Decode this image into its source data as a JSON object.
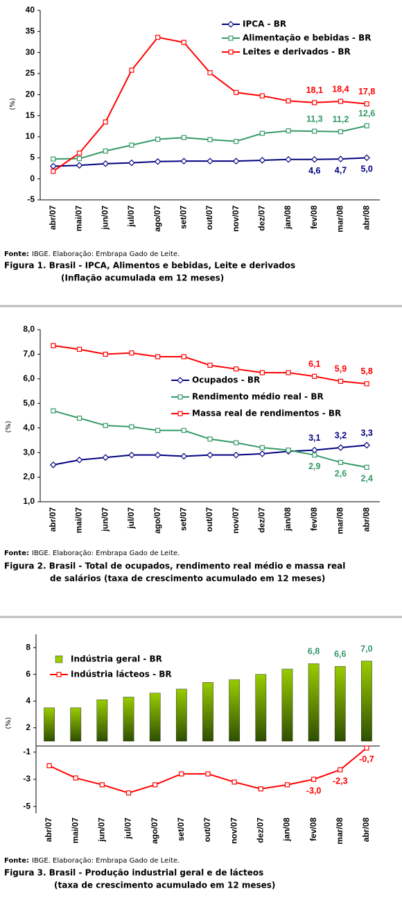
{
  "chart_data": [
    {
      "type": "line",
      "y_label": "(%)",
      "categories": [
        "abr/07",
        "mai/07",
        "jun/07",
        "jul/07",
        "ago/07",
        "set/07",
        "out/07",
        "nov/07",
        "dez/07",
        "jan/08",
        "fev/08",
        "mar/08",
        "abr/08"
      ],
      "ylim": [
        -5,
        40
      ],
      "yticks": [
        40,
        35,
        30,
        25,
        20,
        15,
        10,
        5,
        0,
        -5
      ],
      "series": [
        {
          "name": "IPCA - BR",
          "color": "#000080",
          "values": [
            3.0,
            3.2,
            3.6,
            3.8,
            4.1,
            4.2,
            4.2,
            4.2,
            4.4,
            4.6,
            4.6,
            4.7,
            5.0
          ],
          "value_labels": [
            null,
            null,
            null,
            null,
            null,
            null,
            null,
            null,
            null,
            null,
            "4,6",
            "4,7",
            "5,0"
          ]
        },
        {
          "name": "Alimentação e bebidas - BR",
          "color": "#339966",
          "values": [
            4.7,
            4.8,
            6.6,
            8.0,
            9.4,
            9.8,
            9.3,
            8.9,
            10.8,
            11.4,
            11.3,
            11.2,
            12.6
          ],
          "value_labels": [
            null,
            null,
            null,
            null,
            null,
            null,
            null,
            null,
            null,
            null,
            "11,3",
            "11,2",
            "12,6"
          ]
        },
        {
          "name": "Leites e derivados - BR",
          "color": "#ff0000",
          "values": [
            1.8,
            6.1,
            13.5,
            25.8,
            33.6,
            32.4,
            25.2,
            20.5,
            19.7,
            18.5,
            18.1,
            18.4,
            17.8
          ],
          "value_labels": [
            null,
            null,
            null,
            null,
            null,
            null,
            null,
            null,
            null,
            null,
            "18,1",
            "18,4",
            "17,8"
          ]
        }
      ],
      "source_label": "Fonte:",
      "source_text": "IBGE. Elaboração: Embrapa Gado de Leite.",
      "caption": [
        "Figura 1. Brasil - IPCA, Alimentos e bebidas, Leite e derivados",
        "(Inflação acumulada em 12 meses)"
      ]
    },
    {
      "type": "line",
      "y_label": "(%)",
      "categories": [
        "abr/07",
        "mai/07",
        "jun/07",
        "jul/07",
        "ago/07",
        "set/07",
        "out/07",
        "nov/07",
        "dez/07",
        "jan/08",
        "fev/08",
        "mar/08",
        "abr/08"
      ],
      "ylim": [
        1,
        8
      ],
      "yticks": [
        {
          "value": 8,
          "label": "8,0"
        },
        {
          "value": 7,
          "label": "7,0"
        },
        {
          "value": 6,
          "label": "6,0"
        },
        {
          "value": 5,
          "label": "5,0"
        },
        {
          "value": 4,
          "label": "4,0"
        },
        {
          "value": 3,
          "label": "3,0"
        },
        {
          "value": 2,
          "label": "2,0"
        },
        {
          "value": 1,
          "label": "1,0"
        }
      ],
      "series": [
        {
          "name": "Ocupados - BR",
          "color": "#000080",
          "values": [
            2.5,
            2.7,
            2.8,
            2.9,
            2.9,
            2.85,
            2.9,
            2.9,
            2.95,
            3.05,
            3.1,
            3.2,
            3.3
          ],
          "value_labels": [
            null,
            null,
            null,
            null,
            null,
            null,
            null,
            null,
            null,
            null,
            "3,1",
            "3,2",
            "3,3"
          ]
        },
        {
          "name": "Rendimento médio real - BR",
          "color": "#339966",
          "values": [
            4.7,
            4.4,
            4.1,
            4.05,
            3.9,
            3.9,
            3.55,
            3.4,
            3.2,
            3.1,
            2.9,
            2.6,
            2.4
          ],
          "value_labels": [
            null,
            null,
            null,
            null,
            null,
            null,
            null,
            null,
            null,
            null,
            "2,9",
            "2,6",
            "2,4"
          ]
        },
        {
          "name": "Massa real de rendimentos - BR",
          "color": "#ff0000",
          "values": [
            7.35,
            7.2,
            7.0,
            7.05,
            6.9,
            6.9,
            6.55,
            6.4,
            6.25,
            6.25,
            6.1,
            5.9,
            5.8
          ],
          "value_labels": [
            null,
            null,
            null,
            null,
            null,
            null,
            null,
            null,
            null,
            null,
            "6,1",
            "5,9",
            "5,8"
          ]
        }
      ],
      "source_label": "Fonte:",
      "source_text": "IBGE. Elaboração: Embrapa Gado de Leite.",
      "caption": [
        "Figura 2. Brasil - Total de ocupados, rendimento real médio e massa real",
        "de salários (taxa de crescimento acumulado em 12 meses)"
      ]
    },
    {
      "type": "bar-line",
      "y_label": "(%)",
      "categories": [
        "abr/07",
        "mai/07",
        "jun/07",
        "jul/07",
        "ago/07",
        "set/07",
        "out/07",
        "nov/07",
        "dez/07",
        "jan/08",
        "fev/08",
        "mar/08",
        "abr/08"
      ],
      "ylim": [
        1,
        9
      ],
      "yticks": [
        8,
        6,
        4,
        2
      ],
      "y2lim": [
        -5.5,
        -0.5
      ],
      "y2ticks": [
        -1,
        -3,
        -5
      ],
      "series": [
        {
          "name": "Indústria geral - BR",
          "color": "#99cc00",
          "values": [
            3.5,
            3.5,
            4.1,
            4.3,
            4.6,
            4.9,
            5.4,
            5.6,
            6.0,
            6.4,
            6.8,
            6.6,
            7.0
          ],
          "value_labels": [
            null,
            null,
            null,
            null,
            null,
            null,
            null,
            null,
            null,
            null,
            "6,8",
            "6,6",
            "7,0"
          ]
        },
        {
          "name": "Indústria lácteos - BR",
          "color": "#ff0000",
          "axis": "y2",
          "values": [
            -2.0,
            -2.9,
            -3.4,
            -4.0,
            -3.4,
            -2.6,
            -2.6,
            -3.2,
            -3.7,
            -3.4,
            -3.0,
            -2.3,
            -0.7
          ],
          "value_labels": [
            null,
            null,
            null,
            null,
            null,
            null,
            null,
            null,
            null,
            null,
            "-3,0",
            "-2,3",
            "-0,7"
          ]
        }
      ],
      "source_label": "Fonte:",
      "source_text": "IBGE. Elaboração: Embrapa Gado de Leite.",
      "caption": [
        "Figura 3. Brasil - Produção industrial geral e de lácteos",
        "(taxa de crescimento acumulado em 12 meses)"
      ]
    }
  ]
}
